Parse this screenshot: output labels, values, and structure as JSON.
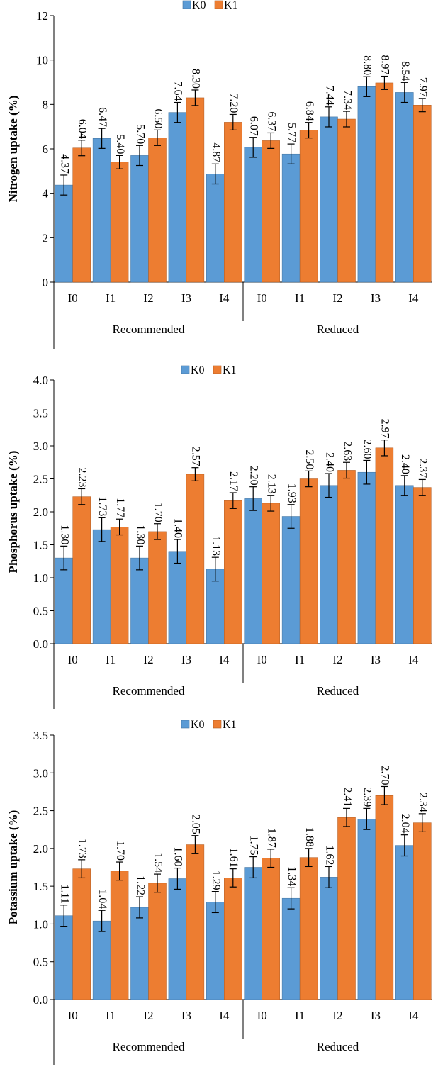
{
  "legend": {
    "k0": "K0",
    "k1": "K1"
  },
  "colors": {
    "k0": "#5b9bd5",
    "k1": "#ed7d31",
    "error_bar": "#000000",
    "axis": "#000000"
  },
  "chart_data": [
    {
      "type": "bar",
      "ylabel": "Nitrogen uptake (%)",
      "ylim": [
        0,
        12
      ],
      "yticks": [
        "0",
        "2",
        "4",
        "6",
        "8",
        "10",
        "12"
      ],
      "categories": [
        "I0",
        "I1",
        "I2",
        "I3",
        "I4",
        "I0",
        "I1",
        "I2",
        "I3",
        "I4"
      ],
      "groups": [
        "Recommended",
        "Reduced"
      ],
      "legend_position": "top",
      "series": [
        {
          "name": "K0",
          "values": [
            4.37,
            6.47,
            5.7,
            7.64,
            4.87,
            6.07,
            5.77,
            7.44,
            8.8,
            8.54
          ],
          "labels": [
            "4.37",
            "6.47",
            "5.70",
            "7.64",
            "4.87",
            "6.07",
            "5.77",
            "7.44",
            "8.80",
            "8.54"
          ],
          "error": [
            0.45,
            0.45,
            0.45,
            0.45,
            0.45,
            0.45,
            0.45,
            0.45,
            0.45,
            0.45
          ]
        },
        {
          "name": "K1",
          "values": [
            6.04,
            5.4,
            6.5,
            8.3,
            7.2,
            6.37,
            6.84,
            7.34,
            8.97,
            7.97
          ],
          "labels": [
            "6.04",
            "5.40",
            "6.50",
            "8.30",
            "7.20",
            "6.37",
            "6.84",
            "7.34",
            "8.97",
            "7.97"
          ],
          "error": [
            0.35,
            0.3,
            0.35,
            0.35,
            0.35,
            0.35,
            0.35,
            0.35,
            0.3,
            0.3
          ]
        }
      ]
    },
    {
      "type": "bar",
      "ylabel": "Phosphorus uptake (%)",
      "ylim": [
        0,
        4
      ],
      "yticks": [
        "0.0",
        "0.5",
        "1.0",
        "1.5",
        "2.0",
        "2.5",
        "3.0",
        "3.5",
        "4.0"
      ],
      "categories": [
        "I0",
        "I1",
        "I2",
        "I3",
        "I4",
        "I0",
        "I1",
        "I2",
        "I3",
        "I4"
      ],
      "groups": [
        "Recommended",
        "Reduced"
      ],
      "legend_position": "top",
      "series": [
        {
          "name": "K0",
          "values": [
            1.3,
            1.73,
            1.3,
            1.4,
            1.13,
            2.2,
            1.93,
            2.4,
            2.6,
            2.4
          ],
          "labels": [
            "1.30",
            "1.73",
            "1.30",
            "1.40",
            "1.13",
            "2.20",
            "1.93",
            "2.40",
            "2.60",
            "2.40"
          ],
          "error": [
            0.18,
            0.18,
            0.18,
            0.18,
            0.18,
            0.18,
            0.18,
            0.18,
            0.18,
            0.15
          ]
        },
        {
          "name": "K1",
          "values": [
            2.23,
            1.77,
            1.7,
            2.57,
            2.17,
            2.13,
            2.5,
            2.63,
            2.97,
            2.37
          ],
          "labels": [
            "2.23",
            "1.77",
            "1.70",
            "2.57",
            "2.17",
            "2.13",
            "2.50",
            "2.63",
            "2.97",
            "2.37"
          ],
          "error": [
            0.12,
            0.12,
            0.12,
            0.1,
            0.12,
            0.12,
            0.12,
            0.12,
            0.12,
            0.12
          ]
        }
      ]
    },
    {
      "type": "bar",
      "ylabel": "Potassium uptake (%)",
      "ylim": [
        0,
        3.5
      ],
      "yticks": [
        "0.0",
        "0.5",
        "1.0",
        "1.5",
        "2.0",
        "2.5",
        "3.0",
        "3.5"
      ],
      "categories": [
        "I0",
        "I1",
        "I2",
        "I3",
        "I4",
        "I0",
        "I1",
        "I2",
        "I3",
        "I4"
      ],
      "groups": [
        "Recommended",
        "Reduced"
      ],
      "legend_position": "top",
      "series": [
        {
          "name": "K0",
          "values": [
            1.11,
            1.04,
            1.22,
            1.6,
            1.29,
            1.75,
            1.34,
            1.62,
            2.39,
            2.04
          ],
          "labels": [
            "1.11",
            "1.04",
            "1.22",
            "1.60",
            "1.29",
            "1.75",
            "1.34",
            "1.62",
            "2.39",
            "2.04"
          ],
          "error": [
            0.14,
            0.14,
            0.14,
            0.14,
            0.14,
            0.14,
            0.14,
            0.14,
            0.14,
            0.14
          ]
        },
        {
          "name": "K1",
          "values": [
            1.73,
            1.7,
            1.54,
            2.05,
            1.61,
            1.87,
            1.88,
            2.41,
            2.7,
            2.34
          ],
          "labels": [
            "1.73",
            "1.70",
            "1.54",
            "2.05",
            "1.61",
            "1.87",
            "1.88",
            "2.41",
            "2.70",
            "2.34"
          ],
          "error": [
            0.12,
            0.12,
            0.12,
            0.12,
            0.12,
            0.12,
            0.12,
            0.12,
            0.12,
            0.12
          ]
        }
      ]
    }
  ]
}
